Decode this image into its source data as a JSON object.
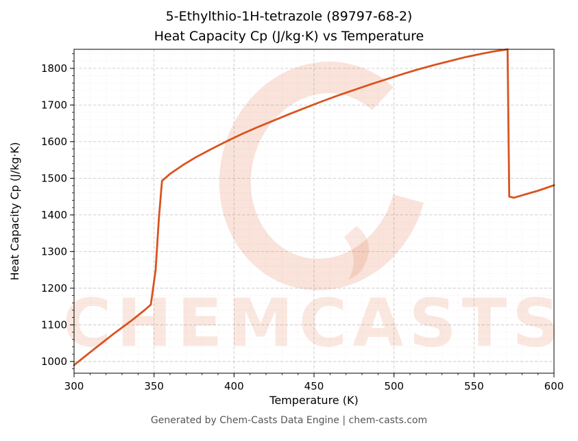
{
  "title_line1": "5-Ethylthio-1H-tetrazole (89797-68-2)",
  "title_line2": "Heat Capacity Cp (J/kg·K) vs Temperature",
  "footer": "Generated by Chem-Casts Data Engine | chem-casts.com",
  "watermark": {
    "text": "CHEMCASTS",
    "color": "#d9531e"
  },
  "chart_data": {
    "type": "line",
    "title": "5-Ethylthio-1H-tetrazole (89797-68-2) Heat Capacity Cp (J/kg·K) vs Temperature",
    "xlabel": "Temperature (K)",
    "ylabel": "Heat Capacity Cp (J/kg·K)",
    "xlim": [
      300,
      600
    ],
    "ylim": [
      968,
      1852
    ],
    "xticks": [
      300,
      350,
      400,
      450,
      500,
      550,
      600
    ],
    "yticks": [
      1000,
      1100,
      1200,
      1300,
      1400,
      1500,
      1600,
      1700,
      1800
    ],
    "minor_x_step": 10,
    "minor_y_step": 20,
    "grid": true,
    "line_color": "#d9531e",
    "series": [
      {
        "name": "Heat Capacity Cp",
        "points": [
          [
            300,
            990
          ],
          [
            312,
            1032
          ],
          [
            324,
            1073
          ],
          [
            336,
            1112
          ],
          [
            344,
            1140
          ],
          [
            348,
            1155
          ],
          [
            351,
            1250
          ],
          [
            353,
            1390
          ],
          [
            355,
            1493
          ],
          [
            360,
            1512
          ],
          [
            368,
            1536
          ],
          [
            376,
            1557
          ],
          [
            385,
            1578
          ],
          [
            395,
            1600
          ],
          [
            405,
            1621
          ],
          [
            415,
            1640
          ],
          [
            425,
            1658
          ],
          [
            435,
            1676
          ],
          [
            445,
            1693
          ],
          [
            455,
            1710
          ],
          [
            465,
            1726
          ],
          [
            475,
            1741
          ],
          [
            485,
            1756
          ],
          [
            495,
            1770
          ],
          [
            505,
            1784
          ],
          [
            515,
            1797
          ],
          [
            525,
            1809
          ],
          [
            535,
            1820
          ],
          [
            545,
            1831
          ],
          [
            555,
            1840
          ],
          [
            562,
            1846
          ],
          [
            568,
            1850
          ],
          [
            571,
            1852
          ],
          [
            572,
            1450
          ],
          [
            575,
            1447
          ],
          [
            582,
            1456
          ],
          [
            590,
            1466
          ],
          [
            600,
            1481
          ]
        ]
      }
    ]
  }
}
